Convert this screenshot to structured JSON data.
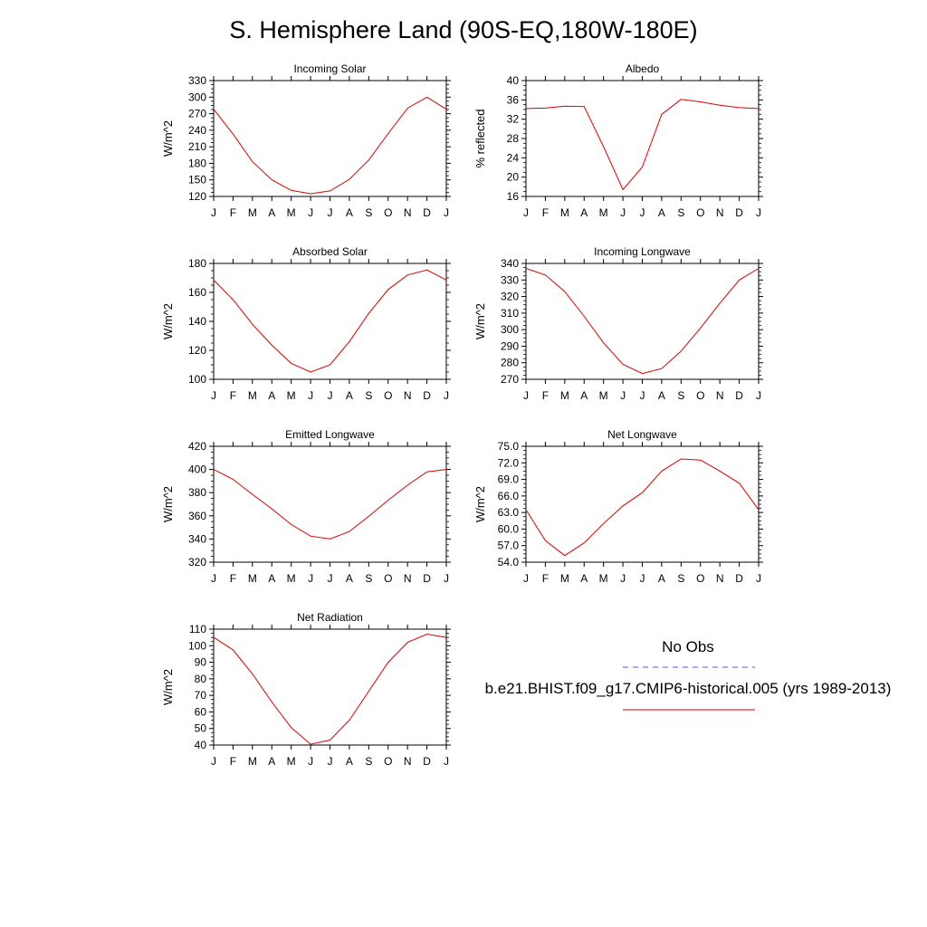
{
  "page": {
    "title": "S. Hemisphere Land (90S-EQ,180W-180E)"
  },
  "legend": {
    "obs_label": "No Obs",
    "obs_color": "#5555ee",
    "model_label": "b.e21.BHIST.f09_g17.CMIP6-historical.005 (yrs 1989-2013)",
    "model_color": "#e00000"
  },
  "chart_data": [
    {
      "id": "incoming-solar",
      "type": "line",
      "title": "Incoming Solar",
      "ylabel": "W/m^2",
      "xlabel": "",
      "categories": [
        "J",
        "F",
        "M",
        "A",
        "M",
        "J",
        "J",
        "A",
        "S",
        "O",
        "N",
        "D",
        "J"
      ],
      "ylim": [
        120,
        330
      ],
      "yticks": [
        120,
        150,
        180,
        210,
        240,
        270,
        300,
        330
      ],
      "ytick_labels": [
        "120",
        "150",
        "180",
        "210",
        "240",
        "270",
        "300",
        "330"
      ],
      "series": [
        {
          "name": "b.e21.BHIST.f09_g17.CMIP6-historical.005",
          "color": "#e00000",
          "values": [
            278,
            233,
            183,
            150,
            131,
            125,
            130,
            151,
            186,
            234,
            280,
            300,
            278
          ]
        }
      ]
    },
    {
      "id": "albedo",
      "type": "line",
      "title": "Albedo",
      "ylabel": "% reflected",
      "xlabel": "",
      "categories": [
        "J",
        "F",
        "M",
        "A",
        "M",
        "J",
        "J",
        "A",
        "S",
        "O",
        "N",
        "D",
        "J"
      ],
      "ylim": [
        16,
        40
      ],
      "yticks": [
        16,
        20,
        24,
        28,
        32,
        36,
        40
      ],
      "ytick_labels": [
        "16",
        "20",
        "24",
        "28",
        "32",
        "36",
        "40"
      ],
      "series": [
        {
          "name": "b.e21.BHIST.f09_g17.CMIP6-historical.005",
          "color": "#e00000",
          "values": [
            34.2,
            34.3,
            34.7,
            34.6,
            26.3,
            17.4,
            22.1,
            33.0,
            36.1,
            35.6,
            34.9,
            34.4,
            34.2
          ]
        }
      ]
    },
    {
      "id": "absorbed-solar",
      "type": "line",
      "title": "Absorbed Solar",
      "ylabel": "W/m^2",
      "xlabel": "",
      "categories": [
        "J",
        "F",
        "M",
        "A",
        "M",
        "J",
        "J",
        "A",
        "S",
        "O",
        "N",
        "D",
        "J"
      ],
      "ylim": [
        100,
        180
      ],
      "yticks": [
        100,
        120,
        140,
        160,
        180
      ],
      "ytick_labels": [
        "100",
        "120",
        "140",
        "160",
        "180"
      ],
      "series": [
        {
          "name": "b.e21.BHIST.f09_g17.CMIP6-historical.005",
          "color": "#e00000",
          "values": [
            168.5,
            155,
            138,
            123.5,
            111,
            105,
            110,
            126,
            145.5,
            162,
            172,
            175.5,
            168.5
          ]
        }
      ]
    },
    {
      "id": "incoming-longwave",
      "type": "line",
      "title": "Incoming Longwave",
      "ylabel": "W/m^2",
      "xlabel": "",
      "categories": [
        "J",
        "F",
        "M",
        "A",
        "M",
        "J",
        "J",
        "A",
        "S",
        "O",
        "N",
        "D",
        "J"
      ],
      "ylim": [
        270,
        340
      ],
      "yticks": [
        270,
        280,
        290,
        300,
        310,
        320,
        330,
        340
      ],
      "ytick_labels": [
        "270",
        "280",
        "290",
        "300",
        "310",
        "320",
        "330",
        "340"
      ],
      "series": [
        {
          "name": "b.e21.BHIST.f09_g17.CMIP6-historical.005",
          "color": "#e00000",
          "values": [
            337,
            333,
            323,
            308,
            292,
            279,
            273.5,
            276.5,
            287,
            301,
            316,
            330,
            337
          ]
        }
      ]
    },
    {
      "id": "emitted-longwave",
      "type": "line",
      "title": "Emitted Longwave",
      "ylabel": "W/m^2",
      "xlabel": "",
      "categories": [
        "J",
        "F",
        "M",
        "A",
        "M",
        "J",
        "J",
        "A",
        "S",
        "O",
        "N",
        "D",
        "J"
      ],
      "ylim": [
        320,
        420
      ],
      "yticks": [
        320,
        340,
        360,
        380,
        400,
        420
      ],
      "ytick_labels": [
        "320",
        "340",
        "360",
        "380",
        "400",
        "420"
      ],
      "series": [
        {
          "name": "b.e21.BHIST.f09_g17.CMIP6-historical.005",
          "color": "#e00000",
          "values": [
            400,
            391.5,
            378.5,
            366,
            352.5,
            342.5,
            340,
            346.5,
            359.5,
            373.5,
            386.5,
            398,
            400
          ]
        }
      ]
    },
    {
      "id": "net-longwave",
      "type": "line",
      "title": "Net Longwave",
      "ylabel": "W/m^2",
      "xlabel": "",
      "categories": [
        "J",
        "F",
        "M",
        "A",
        "M",
        "J",
        "J",
        "A",
        "S",
        "O",
        "N",
        "D",
        "J"
      ],
      "ylim": [
        54.0,
        75.0
      ],
      "yticks": [
        54,
        57,
        60,
        63,
        66,
        69,
        72,
        75
      ],
      "ytick_labels": [
        "54.0",
        "57.0",
        "60.0",
        "63.0",
        "66.0",
        "69.0",
        "72.0",
        "75.0"
      ],
      "series": [
        {
          "name": "b.e21.BHIST.f09_g17.CMIP6-historical.005",
          "color": "#e00000",
          "values": [
            63.5,
            57.9,
            55.2,
            57.5,
            61.0,
            64.2,
            66.6,
            70.5,
            72.7,
            72.5,
            70.5,
            68.3,
            63.5
          ]
        }
      ]
    },
    {
      "id": "net-radiation",
      "type": "line",
      "title": "Net Radiation",
      "ylabel": "W/m^2",
      "xlabel": "",
      "categories": [
        "J",
        "F",
        "M",
        "A",
        "M",
        "J",
        "J",
        "A",
        "S",
        "O",
        "N",
        "D",
        "J"
      ],
      "ylim": [
        40,
        110
      ],
      "yticks": [
        40,
        50,
        60,
        70,
        80,
        90,
        100,
        110
      ],
      "ytick_labels": [
        "40",
        "50",
        "60",
        "70",
        "80",
        "90",
        "100",
        "110"
      ],
      "series": [
        {
          "name": "b.e21.BHIST.f09_g17.CMIP6-historical.005",
          "color": "#e00000",
          "values": [
            105,
            97.5,
            83,
            66,
            50.5,
            40.5,
            43,
            55,
            72.5,
            90,
            102,
            107,
            105
          ]
        }
      ]
    }
  ]
}
